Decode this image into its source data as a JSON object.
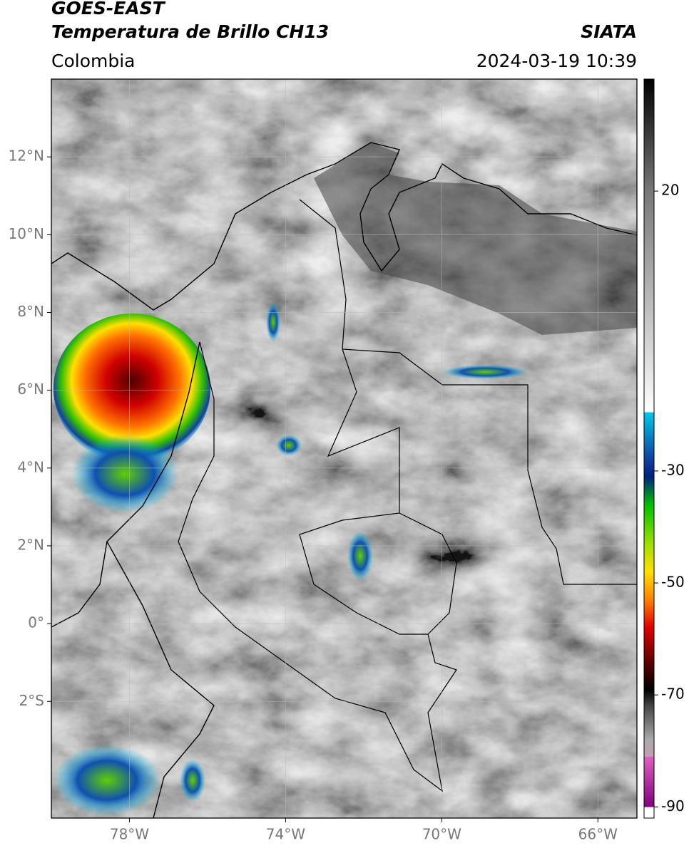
{
  "header": {
    "title": "GOES-EAST",
    "subtitle": "Temperatura de Brillo CH13",
    "source": "SIATA",
    "region": "Colombia",
    "datetime": "2024-03-19 10:39"
  },
  "map": {
    "xlim": [
      -80,
      -65
    ],
    "ylim": [
      -5,
      14
    ],
    "xticks": [
      {
        "value": -78,
        "label": "78°W"
      },
      {
        "value": -74,
        "label": "74°W"
      },
      {
        "value": -70,
        "label": "70°W"
      },
      {
        "value": -66,
        "label": "66°W"
      }
    ],
    "yticks": [
      {
        "value": -2,
        "label": "2°S"
      },
      {
        "value": 0,
        "label": "0°"
      },
      {
        "value": 2,
        "label": "2°N"
      },
      {
        "value": 4,
        "label": "4°N"
      },
      {
        "value": 6,
        "label": "6°N"
      },
      {
        "value": 8,
        "label": "8°N"
      },
      {
        "value": 10,
        "label": "10°N"
      },
      {
        "value": 12,
        "label": "12°N"
      }
    ],
    "grid": true
  },
  "colorbar": {
    "lim": [
      -92,
      40
    ],
    "ticks": [
      20,
      -30,
      -50,
      -70,
      -90
    ]
  }
}
